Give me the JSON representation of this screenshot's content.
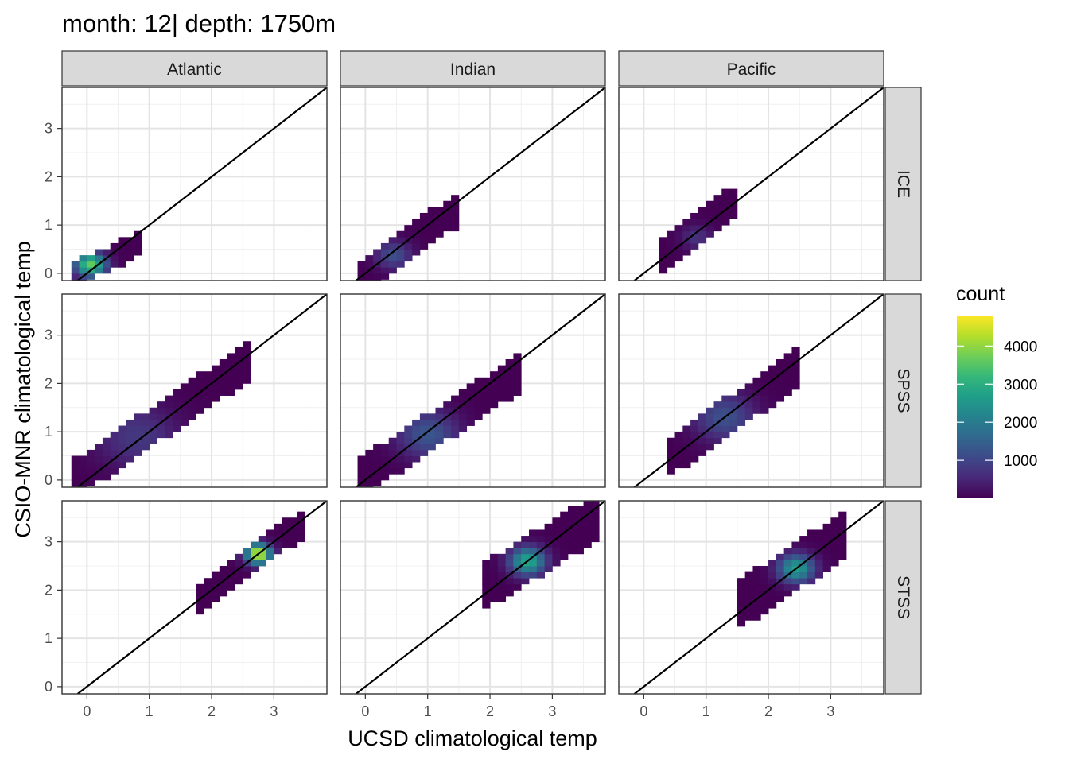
{
  "title": "month: 12| depth: 1750m",
  "chart_data": {
    "type": "heatmap",
    "title": "month: 12| depth: 1750m",
    "xlabel": "UCSD climatological temp",
    "ylabel": "CSIO-MNR climatological temp",
    "xlim": [
      -0.4,
      3.85
    ],
    "ylim": [
      -0.15,
      3.85
    ],
    "x_ticks": [
      0,
      1,
      2,
      3
    ],
    "y_ticks": [
      0,
      1,
      2,
      3
    ],
    "bin_width": 0.125,
    "identity_line": true,
    "grid": true,
    "col_facets": [
      "Atlantic",
      "Indian",
      "Pacific"
    ],
    "row_facets": [
      "ICE",
      "SPSS",
      "STSS"
    ],
    "legend": {
      "title": "count",
      "position": "right",
      "ticks": [
        1000,
        2000,
        3000,
        4000
      ],
      "range": [
        1,
        4800
      ],
      "colormap": "viridis"
    },
    "panels": [
      {
        "col": "Atlantic",
        "row": "ICE",
        "x_range": [
          -0.25,
          0.85
        ],
        "ridge_slope": 0.6,
        "ridge_intercept": 0.1,
        "width": 0.2,
        "peak": [
          0.05,
          0.18
        ],
        "peak_count": 3600,
        "spread": 0.3
      },
      {
        "col": "Indian",
        "row": "ICE",
        "x_range": [
          -0.1,
          1.5
        ],
        "ridge_slope": 0.9,
        "ridge_intercept": 0.0,
        "width": 0.3,
        "peak": [
          0.45,
          0.38
        ],
        "peak_count": 1200,
        "spread": 0.35
      },
      {
        "col": "Pacific",
        "row": "ICE",
        "x_range": [
          0.25,
          1.5
        ],
        "ridge_slope": 0.95,
        "ridge_intercept": 0.08,
        "width": 0.3,
        "peak": [
          0.85,
          0.75
        ],
        "peak_count": 700,
        "spread": 0.3
      },
      {
        "col": "Atlantic",
        "row": "SPSS",
        "x_range": [
          -0.25,
          2.6
        ],
        "ridge_slope": 0.87,
        "ridge_intercept": 0.2,
        "width": 0.35,
        "peak": [
          0.8,
          0.9
        ],
        "peak_count": 800,
        "spread": 0.8
      },
      {
        "col": "Indian",
        "row": "SPSS",
        "x_range": [
          -0.1,
          2.5
        ],
        "ridge_slope": 0.85,
        "ridge_intercept": 0.12,
        "width": 0.35,
        "peak": [
          1.0,
          0.95
        ],
        "peak_count": 1300,
        "spread": 0.6
      },
      {
        "col": "Pacific",
        "row": "SPSS",
        "x_range": [
          0.4,
          2.4
        ],
        "ridge_slope": 0.9,
        "ridge_intercept": 0.1,
        "width": 0.35,
        "peak": [
          1.3,
          1.3
        ],
        "peak_count": 1200,
        "spread": 0.6
      },
      {
        "col": "Atlantic",
        "row": "STSS",
        "x_range": [
          1.8,
          3.4
        ],
        "ridge_slope": 0.95,
        "ridge_intercept": 0.1,
        "width": 0.25,
        "peak": [
          2.75,
          2.75
        ],
        "peak_count": 4800,
        "spread": 0.25
      },
      {
        "col": "Indian",
        "row": "STSS",
        "x_range": [
          1.9,
          3.7
        ],
        "ridge_slope": 0.8,
        "ridge_intercept": 0.55,
        "width": 0.45,
        "peak": [
          2.6,
          2.6
        ],
        "peak_count": 2900,
        "spread": 0.35
      },
      {
        "col": "Pacific",
        "row": "STSS",
        "x_range": [
          1.6,
          3.2
        ],
        "ridge_slope": 0.85,
        "ridge_intercept": 0.4,
        "width": 0.45,
        "peak": [
          2.45,
          2.45
        ],
        "peak_count": 2700,
        "spread": 0.35
      }
    ]
  }
}
